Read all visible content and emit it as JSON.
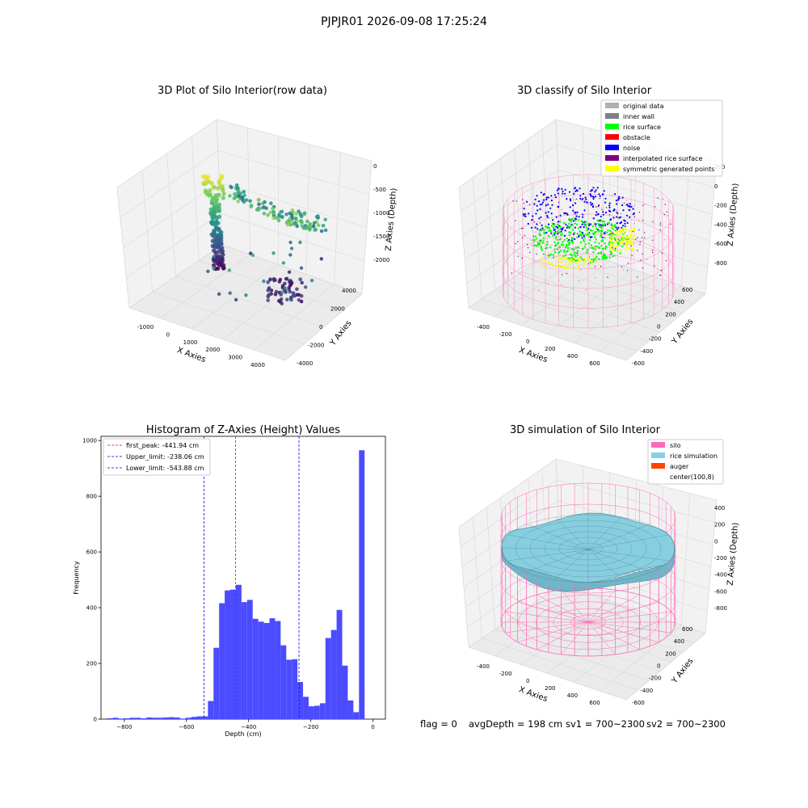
{
  "suptitle": "PJPJR01 2026-09-08 17:25:24",
  "colors": {
    "pane_wall": "#f2f2f2",
    "pane_floor": "#ebebeb",
    "grid": "#d8d8d8",
    "hist_bar": "#4b4bff",
    "peak_line": "#ff0000",
    "limit_line": "#0000ff",
    "silo_wire": "#ff69b4",
    "rice_surface": "#87cedf",
    "rice_edge": "#3a7080"
  },
  "plots": {
    "raw": {
      "title": "3D Plot of Silo Interior(row data)",
      "xlabel": "X Axies",
      "ylabel": "Y Axies",
      "zlabel": "Z Axies (Depth)",
      "x_ticks": [
        "-1000",
        "0",
        "1000",
        "2000",
        "3000",
        "4000"
      ],
      "y_ticks": [
        "-4000",
        "-2000",
        "0",
        "2000",
        "4000"
      ],
      "z_ticks": [
        "0",
        "-500",
        "-1000",
        "-1500",
        "-2000"
      ]
    },
    "classify": {
      "title": "3D classify of Silo Interior",
      "xlabel": "X Axies",
      "ylabel": "Y Axies",
      "zlabel": "Z Axies (Depth)",
      "x_ticks": [
        "-400",
        "-200",
        "0",
        "200",
        "400",
        "600"
      ],
      "y_ticks": [
        "-600",
        "-400",
        "-200",
        "0",
        "200",
        "400",
        "600"
      ],
      "z_ticks": [
        "200",
        "0",
        "-200",
        "-400",
        "-600",
        "-800"
      ],
      "legend": [
        {
          "label": "original data",
          "color": "#b0b0b0"
        },
        {
          "label": "inner wall",
          "color": "#808080"
        },
        {
          "label": "rice surface",
          "color": "#00ff00"
        },
        {
          "label": "obstacle",
          "color": "#ff0000"
        },
        {
          "label": "noise",
          "color": "#0000ff"
        },
        {
          "label": "interpolated rice surface",
          "color": "#800080"
        },
        {
          "label": "symmetric generated points",
          "color": "#ffff00"
        }
      ]
    },
    "simulation": {
      "title": "3D simulation of Silo Interior",
      "xlabel": "X Axies",
      "ylabel": "Y Axies",
      "zlabel": "Z Axies (Depth)",
      "x_ticks": [
        "-400",
        "-200",
        "0",
        "200",
        "400",
        "600"
      ],
      "y_ticks": [
        "-600",
        "-400",
        "-200",
        "0",
        "200",
        "400",
        "600"
      ],
      "z_ticks": [
        "400",
        "200",
        "0",
        "-200",
        "-400",
        "-600",
        "-800"
      ],
      "legend": [
        {
          "label": "silo",
          "color": "#ff69b4"
        },
        {
          "label": "rice simulation",
          "color": "#87ceeb"
        },
        {
          "label": "auger",
          "color": "#ff4500"
        },
        {
          "label": "center(100,8)",
          "color": "#ffffff"
        }
      ]
    }
  },
  "chart_data": {
    "type": "bar",
    "title": "Histogram of Z-Axies (Height) Values",
    "xlabel": "Depth (cm)",
    "ylabel": "Frequency",
    "xlim": [
      -875,
      40
    ],
    "ylim": [
      0,
      1015
    ],
    "x_ticks": [
      -800,
      -600,
      -400,
      -200,
      0
    ],
    "y_ticks": [
      0,
      200,
      400,
      600,
      800,
      1000
    ],
    "bin_start": -855,
    "bin_width": 18,
    "values": [
      3,
      5,
      2,
      3,
      5,
      5,
      3,
      6,
      5,
      5,
      6,
      7,
      6,
      2,
      5,
      8,
      10,
      10,
      65,
      256,
      416,
      462,
      465,
      482,
      420,
      428,
      360,
      350,
      345,
      362,
      352,
      265,
      213,
      215,
      133,
      80,
      46,
      48,
      57,
      291,
      320,
      392,
      192,
      67,
      25,
      965
    ],
    "vlines": [
      {
        "label": "first_peak: -441.94 cm",
        "value": -441.94,
        "kind": "peak"
      },
      {
        "label": "Upper_limit: -238.06 cm",
        "value": -238.06,
        "kind": "limit"
      },
      {
        "label": "Lower_limit: -543.88 cm",
        "value": -543.88,
        "kind": "limit"
      }
    ],
    "legend_position": "upper left",
    "grid": false
  },
  "status": {
    "flag": "flag = 0",
    "avg_depth": "avgDepth = 198 cm",
    "sv1": "sv1 = 700~2300",
    "sv2": "sv2 = 700~2300"
  }
}
